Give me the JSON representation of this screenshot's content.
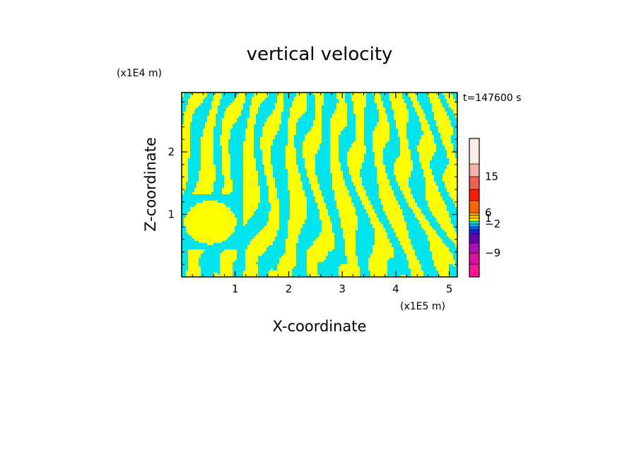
{
  "chart_data": {
    "type": "heatmap",
    "title": "vertical velocity",
    "xlabel": "X-coordinate",
    "ylabel": "Z-coordinate",
    "x_scale_label": "(x1E5 m)",
    "y_scale_label": "(x1E4 m)",
    "time_label": "t=147600 s",
    "xlim": [
      0,
      5.15
    ],
    "ylim": [
      0,
      2.95
    ],
    "x_ticks": [
      1,
      2,
      3,
      4,
      5
    ],
    "x_tick_labels": [
      "1",
      "2",
      "3",
      "4",
      "5"
    ],
    "y_ticks": [
      1,
      2
    ],
    "y_tick_labels": [
      "1",
      "2"
    ],
    "colors": {
      "positive": "#ffff00",
      "negative": "#00e5ee"
    },
    "colorbar": {
      "levels": [
        {
          "color": "#ff1493"
        },
        {
          "color": "#dd10a0"
        },
        {
          "color": "#b010b0"
        },
        {
          "color": "#6a00b8"
        },
        {
          "color": "#2020d0"
        },
        {
          "color": "#1060ff"
        },
        {
          "color": "#20a8ff"
        },
        {
          "color": "#00e5ee"
        },
        {
          "color": "#ffff00"
        },
        {
          "color": "#ffd400"
        },
        {
          "color": "#ffa500"
        },
        {
          "color": "#ff6600"
        },
        {
          "color": "#ff1c00"
        },
        {
          "color": "#f06050"
        },
        {
          "color": "#f5b0a8"
        },
        {
          "color": "#fdebe6"
        }
      ],
      "labels": [
        {
          "text": "15",
          "value": 15
        },
        {
          "text": "6",
          "value": 6
        },
        {
          "text": "1",
          "value": 1
        },
        {
          "text": "−2",
          "value": -2
        },
        {
          "text": "−9",
          "value": -9
        }
      ]
    }
  }
}
